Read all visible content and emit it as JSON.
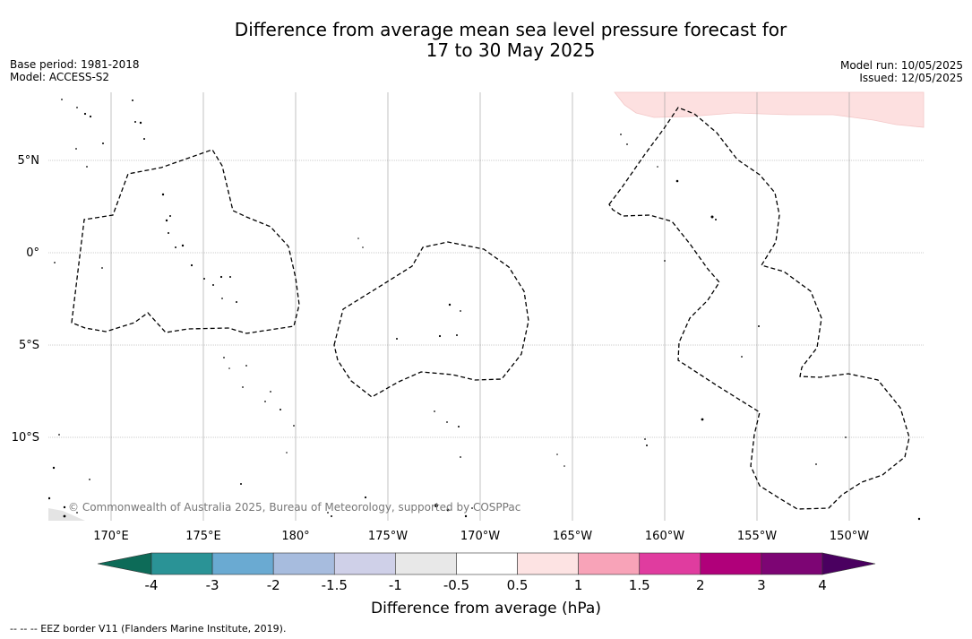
{
  "title_line1": "Difference from average mean sea level pressure forecast for",
  "title_line2": "17 to 30 May 2025",
  "base_period": "Base period: 1981-2018",
  "model": "Model: ACCESS-S2",
  "model_run": "Model run: 10/05/2025",
  "issued": "Issued: 12/05/2025",
  "lat_labels": [
    "5°N",
    "0°",
    "5°S",
    "10°S"
  ],
  "lon_labels": [
    "170°E",
    "175°E",
    "180°",
    "175°W",
    "170°W",
    "165°W",
    "160°W",
    "155°W",
    "150°W"
  ],
  "copyright": "© Commonwealth of Australia 2025, Bureau of Meteorology, supported by COSPPac",
  "colorbar": {
    "label": "Difference from average (hPa)",
    "ticks": [
      "-4",
      "-3",
      "-2",
      "-1.5",
      "-1",
      "-0.5",
      "0.5",
      "1",
      "1.5",
      "2",
      "3",
      "4"
    ],
    "colors": [
      "#1a7a6b",
      "#2a9396",
      "#6aaad2",
      "#a7bcde",
      "#cfd0e8",
      "#e8e8e8",
      "#ffffff",
      "#fde3e3",
      "#f8a3b8",
      "#e03c9f",
      "#b0007a",
      "#7d0574"
    ],
    "extend_low_color": "#0d6b58",
    "extend_high_color": "#4a0060"
  },
  "footnote": "-- -- -- EEZ border V11 (Flanders Marine Institute, 2019).",
  "colors": {
    "positive_anomaly_fill": "#fde0e0",
    "eez_border": "#000000",
    "grid": "#999999"
  }
}
